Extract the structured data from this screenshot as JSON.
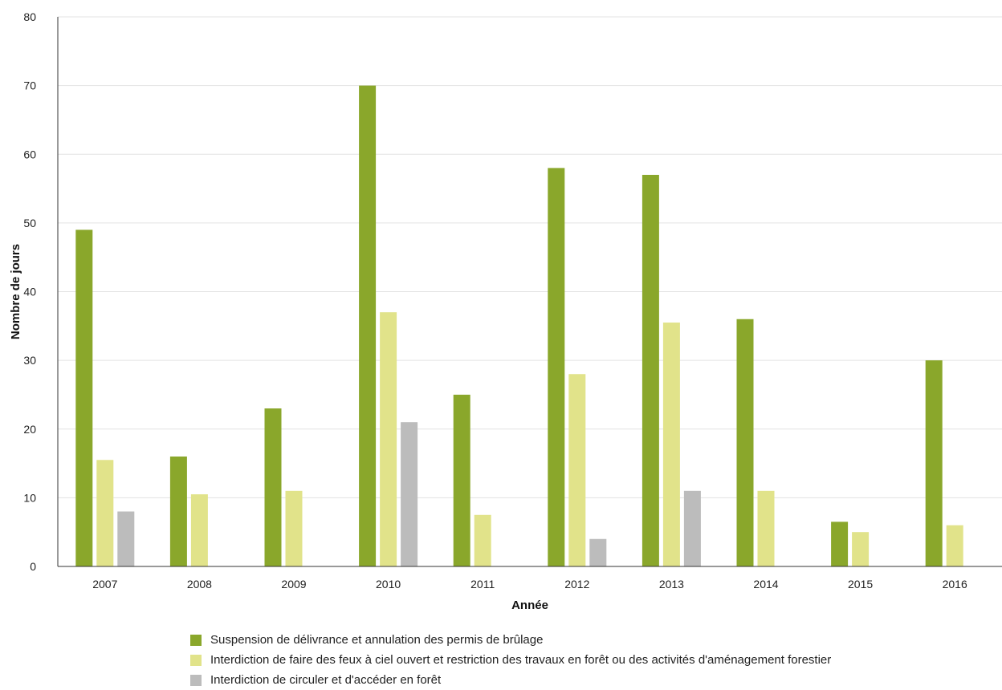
{
  "chart_data": {
    "type": "bar",
    "categories": [
      "2007",
      "2008",
      "2009",
      "2010",
      "2011",
      "2012",
      "2013",
      "2014",
      "2015",
      "2016"
    ],
    "series": [
      {
        "name": "Suspension de délivrance et annulation des permis de brûlage",
        "color": "#8aa72b",
        "values": [
          49,
          16,
          23,
          70,
          25,
          58,
          57,
          36,
          6.5,
          30
        ]
      },
      {
        "name": "Interdiction de faire des feux à ciel ouvert et restriction des travaux en forêt ou des activités d'aménagement forestier",
        "color": "#e1e38a",
        "values": [
          15.5,
          10.5,
          11,
          37,
          7.5,
          28,
          35.5,
          11,
          5,
          6
        ]
      },
      {
        "name": "Interdiction de circuler et d'accéder en forêt",
        "color": "#bcbcbc",
        "values": [
          8,
          0,
          0,
          21,
          0,
          4,
          11,
          0,
          0,
          0
        ]
      }
    ],
    "xlabel": "Année",
    "ylabel": "Nombre de jours",
    "ylim": [
      0,
      80
    ],
    "yticks": [
      0,
      10,
      20,
      30,
      40,
      50,
      60,
      70,
      80
    ],
    "grid": true,
    "legend_position": "bottom"
  }
}
